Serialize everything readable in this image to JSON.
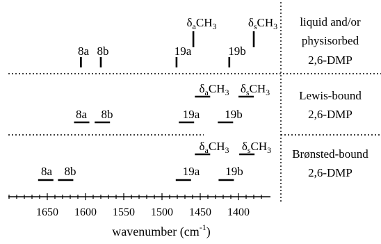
{
  "axis": {
    "title": "wavenumber (cm",
    "title_sup": "-1",
    "title_close": ")",
    "range": [
      1700,
      1370
    ],
    "major_ticks": [
      1650,
      1600,
      1550,
      1500,
      1450,
      1400
    ],
    "minor_step": 10
  },
  "panels": [
    {
      "name": "liquid",
      "label_lines": [
        "liquid and/or",
        "physisorbed",
        "2,6-DMP"
      ],
      "bands": [
        {
          "label": "8a",
          "wn": 1606
        },
        {
          "label": "8b",
          "wn": 1580
        },
        {
          "label": "19a",
          "wn": 1481
        },
        {
          "label": "19b",
          "wn": 1412
        },
        {
          "label": "δaCH3",
          "wn": 1459
        },
        {
          "label": "δsCH3",
          "wn": 1380
        }
      ]
    },
    {
      "name": "lewis",
      "label_lines": [
        "Lewis-bound",
        "2,6-DMP"
      ],
      "bands": [
        {
          "label": "8a",
          "wn": 1605
        },
        {
          "label": "8b",
          "wn": 1578
        },
        {
          "label": "19a",
          "wn": 1468
        },
        {
          "label": "19b",
          "wn": 1417
        },
        {
          "label": "δaCH3",
          "wn": 1447
        },
        {
          "label": "δsCH3",
          "wn": 1390
        }
      ]
    },
    {
      "name": "bronsted",
      "label_lines": [
        "Brønsted-bound",
        "2,6-DMP"
      ],
      "bands": [
        {
          "label": "8a",
          "wn": 1652
        },
        {
          "label": "8b",
          "wn": 1626
        },
        {
          "label": "19a",
          "wn": 1472
        },
        {
          "label": "19b",
          "wn": 1416
        },
        {
          "label": "δaCH3",
          "wn": 1447
        },
        {
          "label": "δsCH3",
          "wn": 1389
        }
      ]
    }
  ],
  "text": {
    "l_8a": "8a",
    "l_8b": "8b",
    "l_19a": "19a",
    "l_19b": "19b",
    "delta": "δ",
    "sub_a": "a",
    "sub_s": "s",
    "ch": "CH",
    "three": "3"
  }
}
